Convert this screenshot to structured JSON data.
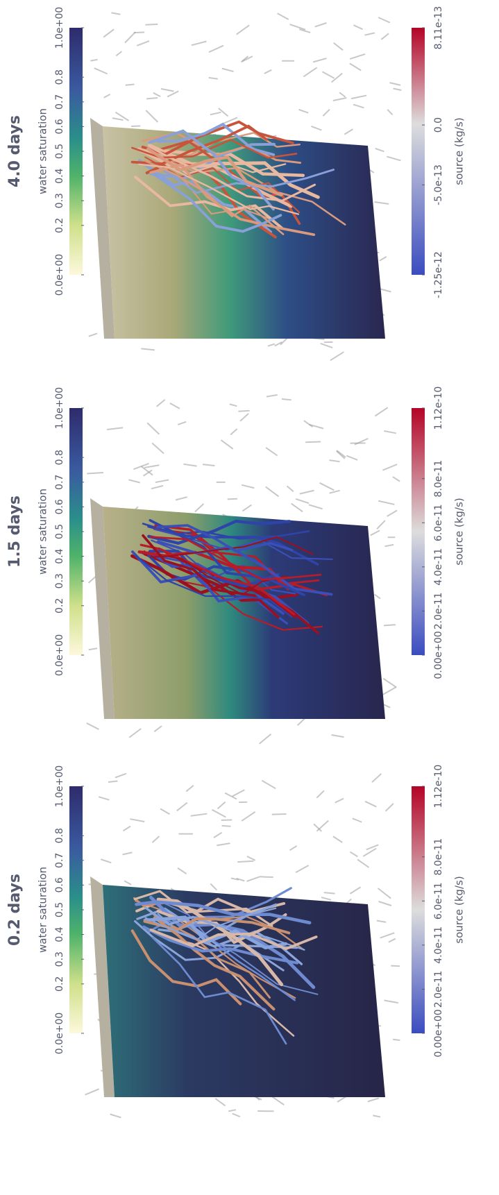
{
  "panels": [
    {
      "title": "4.0 days",
      "saturation": {
        "label": "water saturation",
        "lim": [
          0,
          1
        ],
        "ticks": [
          {
            "value": 0,
            "label": "0.0e+00"
          },
          0.2,
          0.3,
          0.4,
          0.5,
          0.6,
          0.7,
          0.8,
          {
            "value": 1,
            "label": "1.0e+00"
          }
        ]
      },
      "source": {
        "label": "source (kg/s)",
        "lim": [
          -1.25e-12,
          8.11e-13
        ],
        "ticks": [
          {
            "value": -1.25e-12,
            "label": "-1.25e-12"
          },
          {
            "value": -5e-13,
            "label": "-5.0e-13"
          },
          {
            "value": 0,
            "label": "0.0"
          },
          {
            "value": 8.11e-13,
            "label": "8.11e-13"
          }
        ]
      }
    },
    {
      "title": "1.5 days",
      "saturation": {
        "label": "water saturation",
        "lim": [
          0,
          1
        ],
        "ticks": [
          {
            "value": 0,
            "label": "0.0e+00"
          },
          0.2,
          0.3,
          0.4,
          0.5,
          0.6,
          0.7,
          0.8,
          {
            "value": 1,
            "label": "1.0e+00"
          }
        ]
      },
      "source": {
        "label": "source (kg/s)",
        "lim": [
          0,
          1.12e-10
        ],
        "ticks": [
          {
            "value": 0,
            "label": "0.00e+00"
          },
          {
            "value": 2e-11,
            "label": "2.0e-11"
          },
          {
            "value": 4e-11,
            "label": "4.0e-11"
          },
          {
            "value": 6e-11,
            "label": "6.0e-11"
          },
          {
            "value": 8e-11,
            "label": "8.0e-11"
          },
          {
            "value": 1.12e-10,
            "label": "1.12e-10"
          }
        ]
      }
    },
    {
      "title": "0.2 days",
      "saturation": {
        "label": "water saturation",
        "lim": [
          0,
          1
        ],
        "ticks": [
          {
            "value": 0,
            "label": "0.0e+00"
          },
          0.2,
          0.3,
          0.4,
          0.5,
          0.6,
          0.7,
          0.8,
          {
            "value": 1,
            "label": "1.0e+00"
          }
        ]
      },
      "source": {
        "label": "source (kg/s)",
        "lim": [
          0,
          1.12e-10
        ],
        "ticks": [
          {
            "value": 0,
            "label": "0.00e+00"
          },
          {
            "value": 2e-11,
            "label": "2.0e-11"
          },
          {
            "value": 4e-11,
            "label": "4.0e-11"
          },
          {
            "value": 6e-11,
            "label": "6.0e-11"
          },
          {
            "value": 8e-11,
            "label": "8.0e-11"
          },
          {
            "value": 1.12e-10,
            "label": "1.12e-10"
          }
        ]
      }
    }
  ]
}
